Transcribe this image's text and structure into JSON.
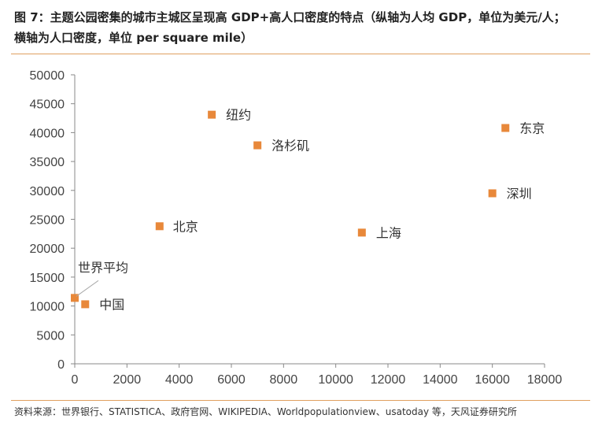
{
  "figure": {
    "title_line1": "图 7：主题公园密集的城市主城区呈现高 GDP+高人口密度的特点（纵轴为人均 GDP，单位为美元/人；",
    "title_line2": "横轴为人口密度，单位 per square mile）",
    "source": "资料来源：世界银行、STATISTICA、政府官网、WIKIPEDIA、Worldpopulationview、usatoday 等，天风证券研究所"
  },
  "chart_data": {
    "type": "scatter",
    "title": "",
    "xlabel": "",
    "ylabel": "",
    "xlim": [
      0,
      18000
    ],
    "ylim": [
      0,
      50000
    ],
    "xticks": [
      0,
      2000,
      4000,
      6000,
      8000,
      10000,
      12000,
      14000,
      16000,
      18000
    ],
    "yticks": [
      0,
      5000,
      10000,
      15000,
      20000,
      25000,
      30000,
      35000,
      40000,
      45000,
      50000
    ],
    "marker_color": "#e8883a",
    "grid": false,
    "points": [
      {
        "label": "世界平均",
        "x": 0,
        "y": 11400
      },
      {
        "label": "中国",
        "x": 400,
        "y": 10300
      },
      {
        "label": "北京",
        "x": 3250,
        "y": 23800
      },
      {
        "label": "纽约",
        "x": 5250,
        "y": 43100
      },
      {
        "label": "洛杉矶",
        "x": 7000,
        "y": 37800
      },
      {
        "label": "上海",
        "x": 11000,
        "y": 22700
      },
      {
        "label": "深圳",
        "x": 16000,
        "y": 29500
      },
      {
        "label": "东京",
        "x": 16500,
        "y": 40800
      }
    ]
  }
}
